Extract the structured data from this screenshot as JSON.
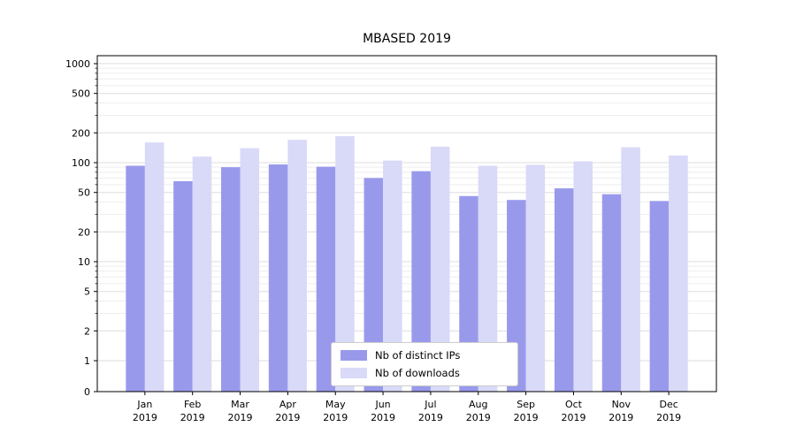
{
  "chart_data": {
    "type": "bar",
    "title": "MBASED 2019",
    "categories": [
      "Jan",
      "Feb",
      "Mar",
      "Apr",
      "May",
      "Jun",
      "Jul",
      "Aug",
      "Sep",
      "Oct",
      "Nov",
      "Dec"
    ],
    "year": "2019",
    "series": [
      {
        "name": "Nb of distinct IPs",
        "color": "#9999ec",
        "values": [
          93,
          65,
          90,
          96,
          91,
          70,
          82,
          46,
          42,
          55,
          48,
          41
        ]
      },
      {
        "name": "Nb of downloads",
        "color": "#d9d9f8",
        "values": [
          160,
          115,
          140,
          170,
          185,
          105,
          145,
          93,
          95,
          103,
          143,
          118
        ]
      }
    ],
    "yscale": "symlog",
    "yticks": [
      0,
      1,
      2,
      5,
      10,
      20,
      50,
      100,
      200,
      500,
      1000
    ],
    "ylim": [
      0,
      1000
    ],
    "grid": true,
    "legend_position": "lower center"
  },
  "colors": {
    "grid_major": "#dedede",
    "grid_minor": "#eeeeee",
    "spine": "#000000",
    "tick": "#000000",
    "background": "#ffffff"
  }
}
